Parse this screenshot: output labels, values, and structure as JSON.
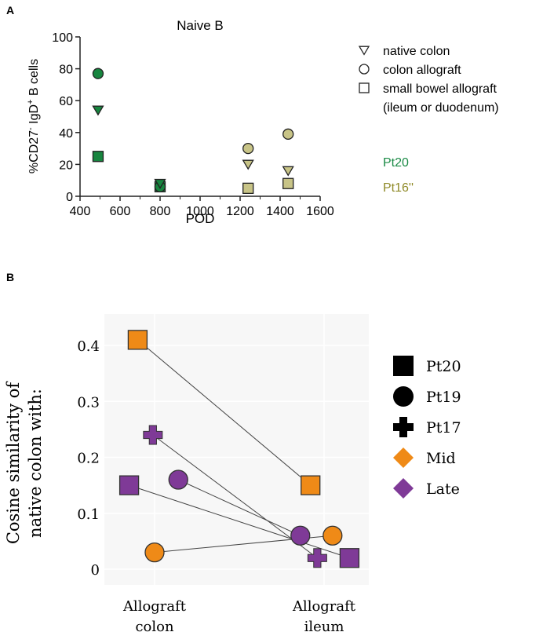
{
  "chart_data": [
    {
      "type": "scatter",
      "panel_label": "A",
      "title": "Naive B",
      "xlabel": "POD",
      "ylabel": "%CD27- IgD+ B cells",
      "ylabel_parts": [
        "%CD27",
        "-",
        " IgD",
        "+",
        " B cells"
      ],
      "xlim": [
        400,
        1600
      ],
      "ylim": [
        0,
        100
      ],
      "xticks": [
        400,
        600,
        800,
        1000,
        1200,
        1400,
        1600
      ],
      "yticks": [
        0,
        20,
        40,
        60,
        80,
        100
      ],
      "legend_shapes": [
        {
          "shape": "triangle",
          "label": "native colon"
        },
        {
          "shape": "circle",
          "label": "colon allograft"
        },
        {
          "shape": "square",
          "label": "small bowel allograft"
        },
        {
          "shape": "none",
          "label": "(ileum or duodenum)"
        }
      ],
      "legend_colors": [
        {
          "label": "Pt20",
          "color": "#17853f",
          "text_color": "#1a8a45"
        },
        {
          "label": "Pt16''",
          "color": "#c8c487",
          "text_color": "#8f8a28"
        }
      ],
      "points": [
        {
          "patient": "Pt20",
          "shape": "circle",
          "x": 490,
          "y": 77
        },
        {
          "patient": "Pt20",
          "shape": "triangle",
          "x": 490,
          "y": 54
        },
        {
          "patient": "Pt20",
          "shape": "square",
          "x": 490,
          "y": 25
        },
        {
          "patient": "Pt20",
          "shape": "square",
          "x": 800,
          "y": 6
        },
        {
          "patient": "Pt20",
          "shape": "circle",
          "x": 800,
          "y": 6
        },
        {
          "patient": "Pt20",
          "shape": "triangle",
          "x": 800,
          "y": 8
        },
        {
          "patient": "Pt16''",
          "shape": "circle",
          "x": 1240,
          "y": 30
        },
        {
          "patient": "Pt16''",
          "shape": "triangle",
          "x": 1240,
          "y": 20
        },
        {
          "patient": "Pt16''",
          "shape": "square",
          "x": 1240,
          "y": 5
        },
        {
          "patient": "Pt16''",
          "shape": "circle",
          "x": 1440,
          "y": 39
        },
        {
          "patient": "Pt16''",
          "shape": "triangle",
          "x": 1440,
          "y": 16
        },
        {
          "patient": "Pt16''",
          "shape": "square",
          "x": 1440,
          "y": 8
        }
      ]
    },
    {
      "type": "scatter",
      "panel_label": "B",
      "ylabel_lines": [
        "Cosine similarity of",
        "native colon with:"
      ],
      "categories": [
        [
          "Allograft",
          "colon"
        ],
        [
          "Allograft",
          "ileum"
        ]
      ],
      "ylim": [
        -0.03,
        0.44
      ],
      "yticks": [
        0,
        0.1,
        0.2,
        0.3,
        0.4
      ],
      "ytick_labels": [
        "0",
        "0.1",
        "0.2",
        "0.3",
        "0.4"
      ],
      "legend": [
        {
          "label": "Pt20",
          "shape": "square"
        },
        {
          "label": "Pt19",
          "shape": "circle"
        },
        {
          "label": "Pt17",
          "shape": "plus"
        },
        {
          "label": "Mid",
          "shape": "diamond",
          "color": "#ef8a17"
        },
        {
          "label": "Late",
          "shape": "diamond",
          "color": "#7f3a97"
        }
      ],
      "colors": {
        "Mid": "#ef8a17",
        "Late": "#7f3a97"
      },
      "pairs": [
        {
          "patient": "Pt20",
          "phase": "Mid",
          "shape": "square",
          "colon": 0.41,
          "ileum": 0.15,
          "jc": -0.1,
          "ji": -0.08
        },
        {
          "patient": "Pt17",
          "phase": "Late",
          "shape": "plus",
          "colon": 0.24,
          "ileum": 0.02,
          "jc": -0.01,
          "ji": -0.04
        },
        {
          "patient": "Pt19",
          "phase": "Late",
          "shape": "circle",
          "colon": 0.16,
          "ileum": 0.06,
          "jc": 0.14,
          "ji": -0.14
        },
        {
          "patient": "Pt20",
          "phase": "Late",
          "shape": "square",
          "colon": 0.15,
          "ileum": 0.02,
          "jc": -0.15,
          "ji": 0.15
        },
        {
          "patient": "Pt19",
          "phase": "Mid",
          "shape": "circle",
          "colon": 0.03,
          "ileum": 0.06,
          "jc": 0,
          "ji": 0.05
        }
      ]
    }
  ]
}
